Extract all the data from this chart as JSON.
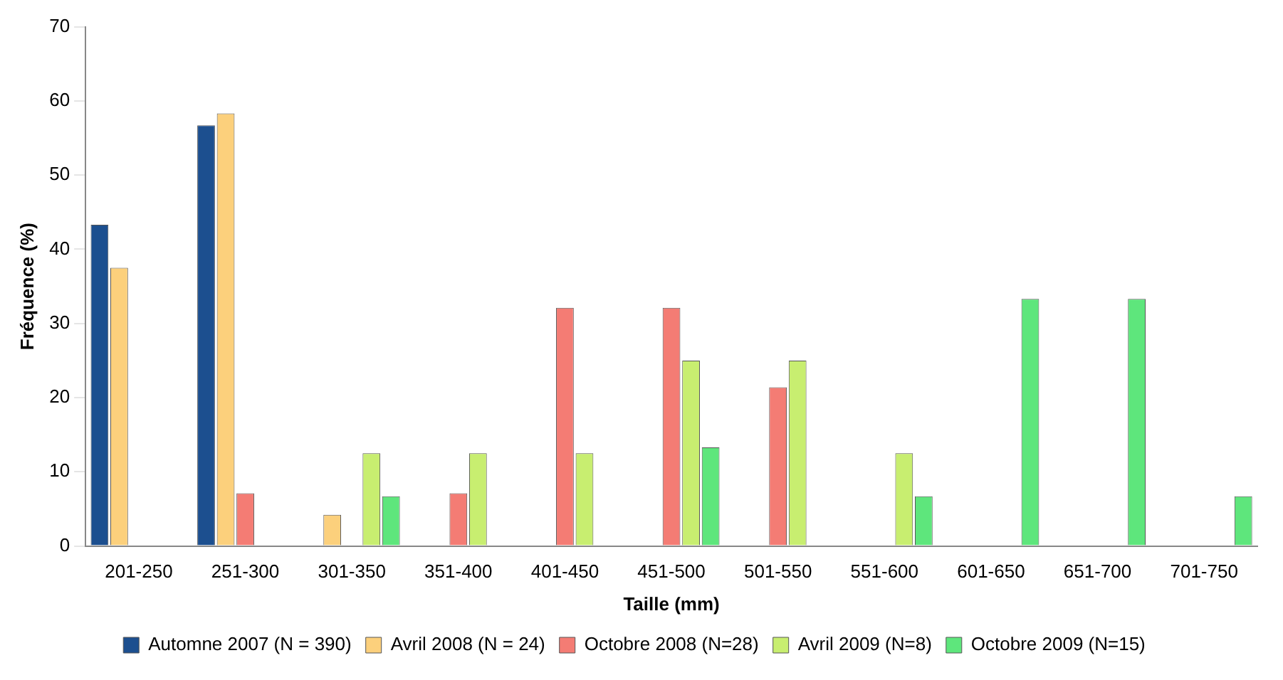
{
  "chart_data": {
    "type": "bar",
    "xlabel": "Taille (mm)",
    "ylabel": "Fréquence (%)",
    "categories": [
      "201-250",
      "251-300",
      "301-350",
      "351-400",
      "401-450",
      "451-500",
      "501-550",
      "551-600",
      "601-650",
      "651-700",
      "701-750"
    ],
    "series": [
      {
        "name": "Automne 2007 (N = 390)",
        "color": "#1c4f8f",
        "values": [
          43.3,
          56.7,
          null,
          null,
          null,
          null,
          null,
          null,
          null,
          null,
          null
        ]
      },
      {
        "name": "Avril 2008 (N = 24)",
        "color": "#fcd07c",
        "values": [
          37.5,
          58.3,
          4.2,
          null,
          null,
          null,
          null,
          null,
          null,
          null,
          null
        ]
      },
      {
        "name": "Octobre 2008 (N=28)",
        "color": "#f47c74",
        "values": [
          null,
          7.1,
          null,
          7.1,
          32.1,
          32.1,
          21.4,
          null,
          null,
          null,
          null
        ]
      },
      {
        "name": "Avril 2009 (N=8)",
        "color": "#c8ee70",
        "values": [
          null,
          null,
          12.5,
          12.5,
          12.5,
          25,
          25,
          12.5,
          null,
          null,
          null
        ]
      },
      {
        "name": "Octobre 2009 (N=15)",
        "color": "#5ee67c",
        "values": [
          null,
          null,
          6.7,
          null,
          null,
          13.3,
          null,
          6.7,
          33.3,
          33.3,
          6.7
        ]
      }
    ],
    "ylim": [
      0,
      70
    ],
    "yticks": [
      0,
      10,
      20,
      30,
      40,
      50,
      60,
      70
    ],
    "grid": false,
    "legend": "bottom"
  }
}
